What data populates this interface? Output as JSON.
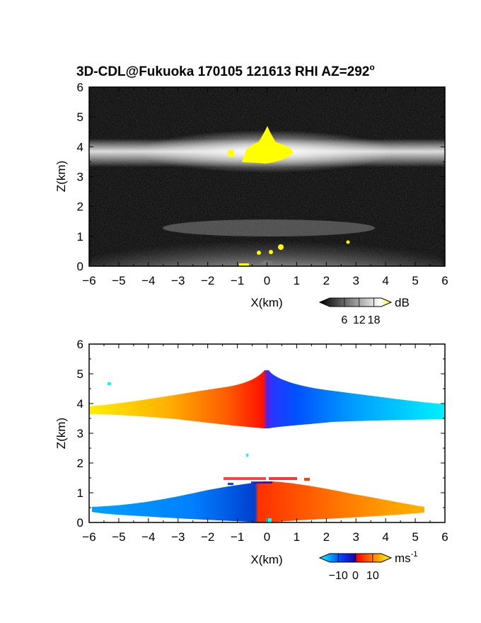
{
  "title_main": "3D-CDL@Fukuoka 170105 121613 RHI AZ=292",
  "title_sup": "o",
  "chart_data": [
    {
      "type": "heatmap",
      "quantity": "reflectivity",
      "xlabel": "X(km)",
      "ylabel": "Z(km)",
      "xlim": [
        -6,
        6
      ],
      "ylim": [
        0,
        6
      ],
      "xticks": [
        -6,
        -5,
        -4,
        -3,
        -2,
        -1,
        0,
        1,
        2,
        3,
        4,
        5,
        6
      ],
      "yticks": [
        0,
        1,
        2,
        3,
        4,
        5,
        6
      ],
      "grid": false,
      "colorbar": {
        "label": "dB",
        "ticks": [
          6,
          12,
          18
        ],
        "range": [
          0,
          21
        ],
        "colors": [
          "#000000",
          "#ffffff",
          "#ffff00"
        ]
      },
      "features": [
        {
          "layer": "upper cloud band",
          "z_range": [
            3.3,
            4.3
          ],
          "peak_x": 0,
          "top_z": 4.7
        },
        {
          "layer": "yellow core",
          "x_range": [
            -1.3,
            0.9
          ],
          "z_range": [
            3.5,
            4.4
          ]
        },
        {
          "layer": "lower layer",
          "z_range": [
            0,
            1.5
          ],
          "peak_x": 0
        }
      ]
    },
    {
      "type": "heatmap",
      "quantity": "radial velocity",
      "xlabel": "X(km)",
      "ylabel": "Z(km)",
      "xlim": [
        -6,
        6
      ],
      "ylim": [
        0,
        6
      ],
      "xticks": [
        -6,
        -5,
        -4,
        -3,
        -2,
        -1,
        0,
        1,
        2,
        3,
        4,
        5,
        6
      ],
      "yticks": [
        0,
        1,
        2,
        3,
        4,
        5,
        6
      ],
      "grid": false,
      "colorbar": {
        "label": "ms",
        "label_sup": "-1",
        "ticks": [
          "−10",
          "0",
          "10"
        ],
        "tick_values": [
          -10,
          0,
          10
        ],
        "range": [
          -15,
          15
        ],
        "colors": [
          "#00ffff",
          "#0040ff",
          "#0000a0",
          "#ff0000",
          "#ff8000",
          "#ffff00"
        ]
      },
      "features": [
        {
          "layer": "upper band",
          "x_range": [
            -6,
            6
          ],
          "z_range": [
            3.2,
            4.6
          ],
          "velocity_left": 12,
          "velocity_right": -14
        },
        {
          "layer": "lower band",
          "x_range": [
            -5.8,
            5.2
          ],
          "z_range": [
            0,
            1.2
          ],
          "velocity_left": -9,
          "velocity_right": 10
        }
      ]
    }
  ]
}
